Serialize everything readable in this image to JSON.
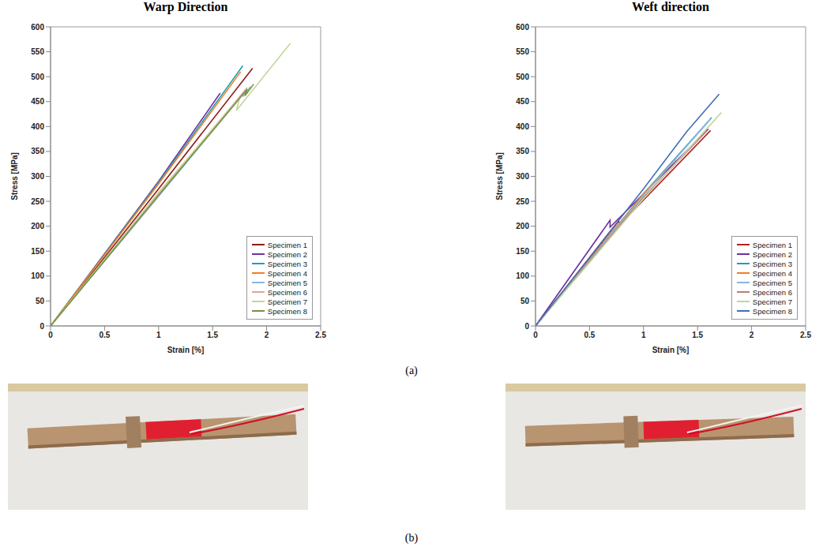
{
  "chart_data": [
    {
      "type": "line",
      "title": "Warp Direction",
      "x_label": "Strain [%]",
      "y_label": "Stress [MPa]",
      "xlim": [
        0,
        2.5
      ],
      "xticks": [
        0,
        0.5,
        1,
        1.5,
        2,
        2.5
      ],
      "ylim": [
        0,
        600
      ],
      "yticks": [
        0,
        50,
        100,
        150,
        200,
        250,
        300,
        350,
        400,
        450,
        500,
        550,
        600
      ],
      "grid": false,
      "legend": "lower right",
      "series": [
        {
          "name": "Specimen 1",
          "color": "#8b1c1c",
          "x": [
            0,
            1,
            1.87
          ],
          "values": [
            0,
            275,
            517
          ]
        },
        {
          "name": "Specimen 2",
          "color": "#7030a0",
          "x": [
            0,
            1,
            1.57
          ],
          "values": [
            0,
            290,
            467
          ]
        },
        {
          "name": "Specimen 3",
          "color": "#1f9fb8",
          "x": [
            0,
            1,
            1.78
          ],
          "values": [
            0,
            288,
            522
          ]
        },
        {
          "name": "Specimen 4",
          "color": "#f07f20",
          "x": [
            0,
            1,
            1.76
          ],
          "values": [
            0,
            285,
            510
          ]
        },
        {
          "name": "Specimen 5",
          "color": "#8eb4e3",
          "x": [
            0,
            1,
            1.8,
            1.78,
            1.85
          ],
          "values": [
            0,
            260,
            470,
            460,
            480
          ]
        },
        {
          "name": "Specimen 6",
          "color": "#e6a0a0",
          "x": [
            0,
            1,
            1.82
          ],
          "values": [
            0,
            265,
            478
          ]
        },
        {
          "name": "Specimen 7",
          "color": "#c3d69b",
          "x": [
            0,
            1,
            1.75,
            1.72,
            2.22
          ],
          "values": [
            0,
            268,
            458,
            432,
            567
          ]
        },
        {
          "name": "Specimen 8",
          "color": "#77933c",
          "x": [
            0,
            1,
            1.82,
            1.8,
            1.88
          ],
          "values": [
            0,
            262,
            475,
            462,
            485
          ]
        }
      ]
    },
    {
      "type": "line",
      "title": "Weft direction",
      "x_label": "Strain [%]",
      "y_label": "Stress [MPa]",
      "xlim": [
        0,
        2.5
      ],
      "xticks": [
        0,
        0.5,
        1,
        1.5,
        2,
        2.5
      ],
      "ylim": [
        0,
        600
      ],
      "yticks": [
        0,
        50,
        100,
        150,
        200,
        250,
        300,
        350,
        400,
        450,
        500,
        550,
        600
      ],
      "grid": false,
      "legend": "lower right",
      "series": [
        {
          "name": "Specimen 1",
          "color": "#b22222",
          "x": [
            0,
            0.77,
            0.78,
            1.62
          ],
          "values": [
            0,
            210,
            203,
            392
          ]
        },
        {
          "name": "Specimen 2",
          "color": "#7030a0",
          "x": [
            0,
            0.69,
            0.69,
            1.6
          ],
          "values": [
            0,
            212,
            198,
            395
          ]
        },
        {
          "name": "Specimen 3",
          "color": "#1f9fb8",
          "x": [
            0,
            1,
            1.63
          ],
          "values": [
            0,
            265,
            418
          ]
        },
        {
          "name": "Specimen 4",
          "color": "#f07f20",
          "x": [
            0,
            1,
            1.3
          ],
          "values": [
            0,
            265,
            335
          ]
        },
        {
          "name": "Specimen 5",
          "color": "#8eb4e3",
          "x": [
            0,
            1,
            1.62
          ],
          "values": [
            0,
            262,
            415
          ]
        },
        {
          "name": "Specimen 6",
          "color": "#b5807a",
          "x": [
            0,
            1,
            1.58
          ],
          "values": [
            0,
            258,
            390
          ]
        },
        {
          "name": "Specimen 7",
          "color": "#c3d69b",
          "x": [
            0,
            1,
            1.72
          ],
          "values": [
            0,
            255,
            428
          ]
        },
        {
          "name": "Specimen 8",
          "color": "#3f6fb5",
          "x": [
            0,
            1,
            1.4,
            1.7
          ],
          "values": [
            0,
            275,
            390,
            465
          ]
        }
      ]
    }
  ],
  "panel_labels": [
    "(a)",
    "(b)"
  ]
}
